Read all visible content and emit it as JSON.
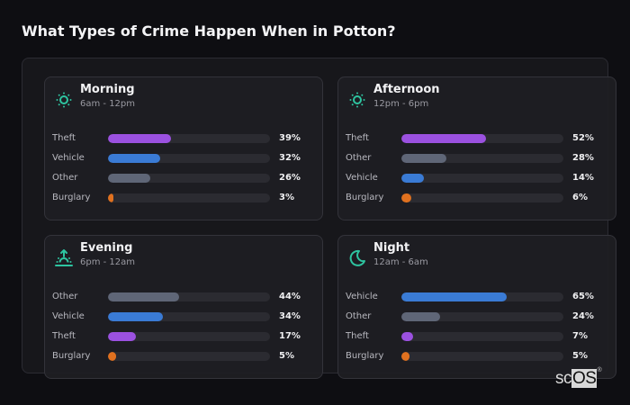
{
  "page": {
    "title": "What Types of Crime Happen When in Potton?"
  },
  "logo": {
    "text_left": "sc",
    "text_right": "OS",
    "mark": "®"
  },
  "colors": {
    "accent_icon": "#2ec4a0",
    "Theft": "#9b51e0",
    "Vehicle": "#3a7bd5",
    "Other": "#5f6677",
    "Burglary": "#e0711f"
  },
  "cards": [
    {
      "title": "Morning",
      "subtitle": "6am - 12pm",
      "icon": "sun-icon",
      "rows": [
        {
          "label": "Theft",
          "value": 39,
          "display": "39%"
        },
        {
          "label": "Vehicle",
          "value": 32,
          "display": "32%"
        },
        {
          "label": "Other",
          "value": 26,
          "display": "26%"
        },
        {
          "label": "Burglary",
          "value": 3,
          "display": "3%"
        }
      ]
    },
    {
      "title": "Afternoon",
      "subtitle": "12pm - 6pm",
      "icon": "sun-icon",
      "rows": [
        {
          "label": "Theft",
          "value": 52,
          "display": "52%"
        },
        {
          "label": "Other",
          "value": 28,
          "display": "28%"
        },
        {
          "label": "Vehicle",
          "value": 14,
          "display": "14%"
        },
        {
          "label": "Burglary",
          "value": 6,
          "display": "6%"
        }
      ]
    },
    {
      "title": "Evening",
      "subtitle": "6pm - 12am",
      "icon": "sunset-icon",
      "rows": [
        {
          "label": "Other",
          "value": 44,
          "display": "44%"
        },
        {
          "label": "Vehicle",
          "value": 34,
          "display": "34%"
        },
        {
          "label": "Theft",
          "value": 17,
          "display": "17%"
        },
        {
          "label": "Burglary",
          "value": 5,
          "display": "5%"
        }
      ]
    },
    {
      "title": "Night",
      "subtitle": "12am - 6am",
      "icon": "moon-icon",
      "rows": [
        {
          "label": "Vehicle",
          "value": 65,
          "display": "65%"
        },
        {
          "label": "Other",
          "value": 24,
          "display": "24%"
        },
        {
          "label": "Theft",
          "value": 7,
          "display": "7%"
        },
        {
          "label": "Burglary",
          "value": 5,
          "display": "5%"
        }
      ]
    }
  ],
  "chart_data": [
    {
      "type": "bar",
      "orientation": "horizontal",
      "title": "Morning",
      "subtitle": "6am - 12pm",
      "categories": [
        "Theft",
        "Vehicle",
        "Other",
        "Burglary"
      ],
      "values": [
        39,
        32,
        26,
        3
      ],
      "unit": "%",
      "xlim": [
        0,
        100
      ]
    },
    {
      "type": "bar",
      "orientation": "horizontal",
      "title": "Afternoon",
      "subtitle": "12pm - 6pm",
      "categories": [
        "Theft",
        "Other",
        "Vehicle",
        "Burglary"
      ],
      "values": [
        52,
        28,
        14,
        6
      ],
      "unit": "%",
      "xlim": [
        0,
        100
      ]
    },
    {
      "type": "bar",
      "orientation": "horizontal",
      "title": "Evening",
      "subtitle": "6pm - 12am",
      "categories": [
        "Other",
        "Vehicle",
        "Theft",
        "Burglary"
      ],
      "values": [
        44,
        34,
        17,
        5
      ],
      "unit": "%",
      "xlim": [
        0,
        100
      ]
    },
    {
      "type": "bar",
      "orientation": "horizontal",
      "title": "Night",
      "subtitle": "12am - 6am",
      "categories": [
        "Vehicle",
        "Other",
        "Theft",
        "Burglary"
      ],
      "values": [
        65,
        24,
        7,
        5
      ],
      "unit": "%",
      "xlim": [
        0,
        100
      ]
    }
  ]
}
